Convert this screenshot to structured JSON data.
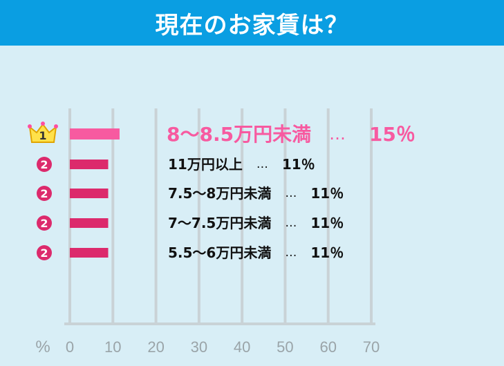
{
  "title": "現在のお家賃は？",
  "chart_data": {
    "type": "bar",
    "orientation": "horizontal",
    "title": "現在のお家賃は？",
    "unit_label": "%",
    "x_ticks": [
      "0",
      "10",
      "20",
      "30",
      "40",
      "50",
      "60",
      "70"
    ],
    "xlim": [
      0,
      70
    ],
    "grid": true,
    "categories": [
      "8～8.5万円未満",
      "11万円以上",
      "7.5～8万円未満",
      "7～7.5万円未満",
      "5.5～6万円未満"
    ],
    "values": [
      15,
      11,
      11,
      11,
      11
    ],
    "value_labels": [
      "15％",
      "11％",
      "11％",
      "11％",
      "11％"
    ],
    "ranks": [
      "1",
      "2",
      "2",
      "2",
      "2"
    ],
    "separator": "…",
    "colors": {
      "top": "#f75aa0",
      "other": "#dc2a6c",
      "grid": "#c9d2d6",
      "axis_text": "#9aa4a8"
    }
  }
}
